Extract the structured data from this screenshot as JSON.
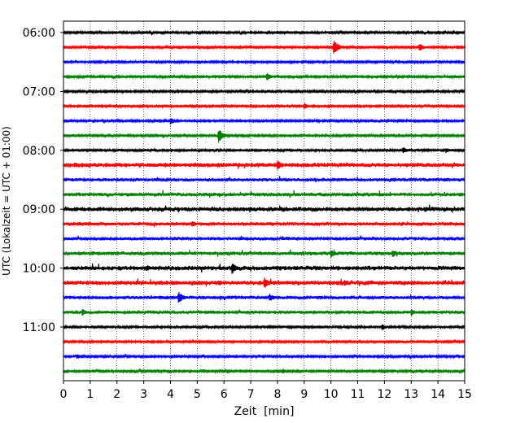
{
  "chart_data": {
    "type": "line",
    "title": "",
    "xlabel": "Zeit  [min]",
    "ylabel": "UTC (Lokalzeit = UTC + 01:00)",
    "xlim": [
      0,
      15
    ],
    "x_ticks": [
      0,
      1,
      2,
      3,
      4,
      5,
      6,
      7,
      8,
      9,
      10,
      11,
      12,
      13,
      14,
      15
    ],
    "x_tick_labels": [
      "0",
      "1",
      "2",
      "3",
      "4",
      "5",
      "6",
      "7",
      "8",
      "9",
      "10",
      "11",
      "12",
      "13",
      "14",
      "15"
    ],
    "y_tick_labels": [
      "06:00",
      "07:00",
      "08:00",
      "09:00",
      "10:00",
      "11:00"
    ],
    "x_grid": "dotted vertical lines at each minute",
    "trace_colors": [
      "#000000",
      "#ff0000",
      "#0000ff",
      "#008000"
    ],
    "series": [
      {
        "start": "06:00",
        "color": "#000000",
        "amplitude": 0.06,
        "events": []
      },
      {
        "start": "06:15",
        "color": "#ff0000",
        "amplitude": 0.06,
        "events": [
          [
            10.1,
            0.55
          ],
          [
            13.3,
            0.3
          ]
        ]
      },
      {
        "start": "06:30",
        "color": "#0000ff",
        "amplitude": 0.06,
        "events": []
      },
      {
        "start": "06:45",
        "color": "#008000",
        "amplitude": 0.06,
        "events": [
          [
            7.6,
            0.3
          ]
        ]
      },
      {
        "start": "07:00",
        "color": "#000000",
        "amplitude": 0.06,
        "events": []
      },
      {
        "start": "07:15",
        "color": "#ff0000",
        "amplitude": 0.06,
        "events": [
          [
            9.0,
            0.25
          ]
        ]
      },
      {
        "start": "07:30",
        "color": "#0000ff",
        "amplitude": 0.06,
        "events": [
          [
            4.0,
            0.25
          ]
        ]
      },
      {
        "start": "07:45",
        "color": "#008000",
        "amplitude": 0.06,
        "events": [
          [
            5.8,
            0.5
          ]
        ]
      },
      {
        "start": "08:00",
        "color": "#000000",
        "amplitude": 0.07,
        "events": [
          [
            12.7,
            0.25
          ],
          [
            14.3,
            0.2
          ]
        ]
      },
      {
        "start": "08:15",
        "color": "#ff0000",
        "amplitude": 0.12,
        "events": [
          [
            8.0,
            0.35
          ],
          [
            3.8,
            0.2
          ]
        ]
      },
      {
        "start": "08:30",
        "color": "#0000ff",
        "amplitude": 0.09,
        "events": []
      },
      {
        "start": "08:45",
        "color": "#008000",
        "amplitude": 0.1,
        "events": []
      },
      {
        "start": "09:00",
        "color": "#000000",
        "amplitude": 0.12,
        "events": []
      },
      {
        "start": "09:15",
        "color": "#ff0000",
        "amplitude": 0.1,
        "events": [
          [
            4.8,
            0.25
          ]
        ]
      },
      {
        "start": "09:30",
        "color": "#0000ff",
        "amplitude": 0.09,
        "events": []
      },
      {
        "start": "09:45",
        "color": "#008000",
        "amplitude": 0.1,
        "events": [
          [
            10.0,
            0.3
          ],
          [
            12.3,
            0.3
          ]
        ]
      },
      {
        "start": "10:00",
        "color": "#000000",
        "amplitude": 0.12,
        "events": [
          [
            6.3,
            0.4
          ],
          [
            3.1,
            0.25
          ]
        ]
      },
      {
        "start": "10:15",
        "color": "#ff0000",
        "amplitude": 0.12,
        "events": [
          [
            7.5,
            0.4
          ],
          [
            10.5,
            0.3
          ]
        ]
      },
      {
        "start": "10:30",
        "color": "#0000ff",
        "amplitude": 0.09,
        "events": [
          [
            4.3,
            0.45
          ],
          [
            7.7,
            0.3
          ]
        ]
      },
      {
        "start": "10:45",
        "color": "#008000",
        "amplitude": 0.08,
        "events": [
          [
            0.7,
            0.25
          ],
          [
            13.0,
            0.25
          ]
        ]
      },
      {
        "start": "11:00",
        "color": "#000000",
        "amplitude": 0.07,
        "events": [
          [
            11.9,
            0.25
          ]
        ]
      },
      {
        "start": "11:15",
        "color": "#ff0000",
        "amplitude": 0.06,
        "events": []
      },
      {
        "start": "11:30",
        "color": "#0000ff",
        "amplitude": 0.06,
        "events": [
          [
            0.5,
            0.2
          ]
        ]
      },
      {
        "start": "11:45",
        "color": "#008000",
        "amplitude": 0.06,
        "events": [
          [
            8.2,
            0.2
          ]
        ]
      }
    ]
  }
}
